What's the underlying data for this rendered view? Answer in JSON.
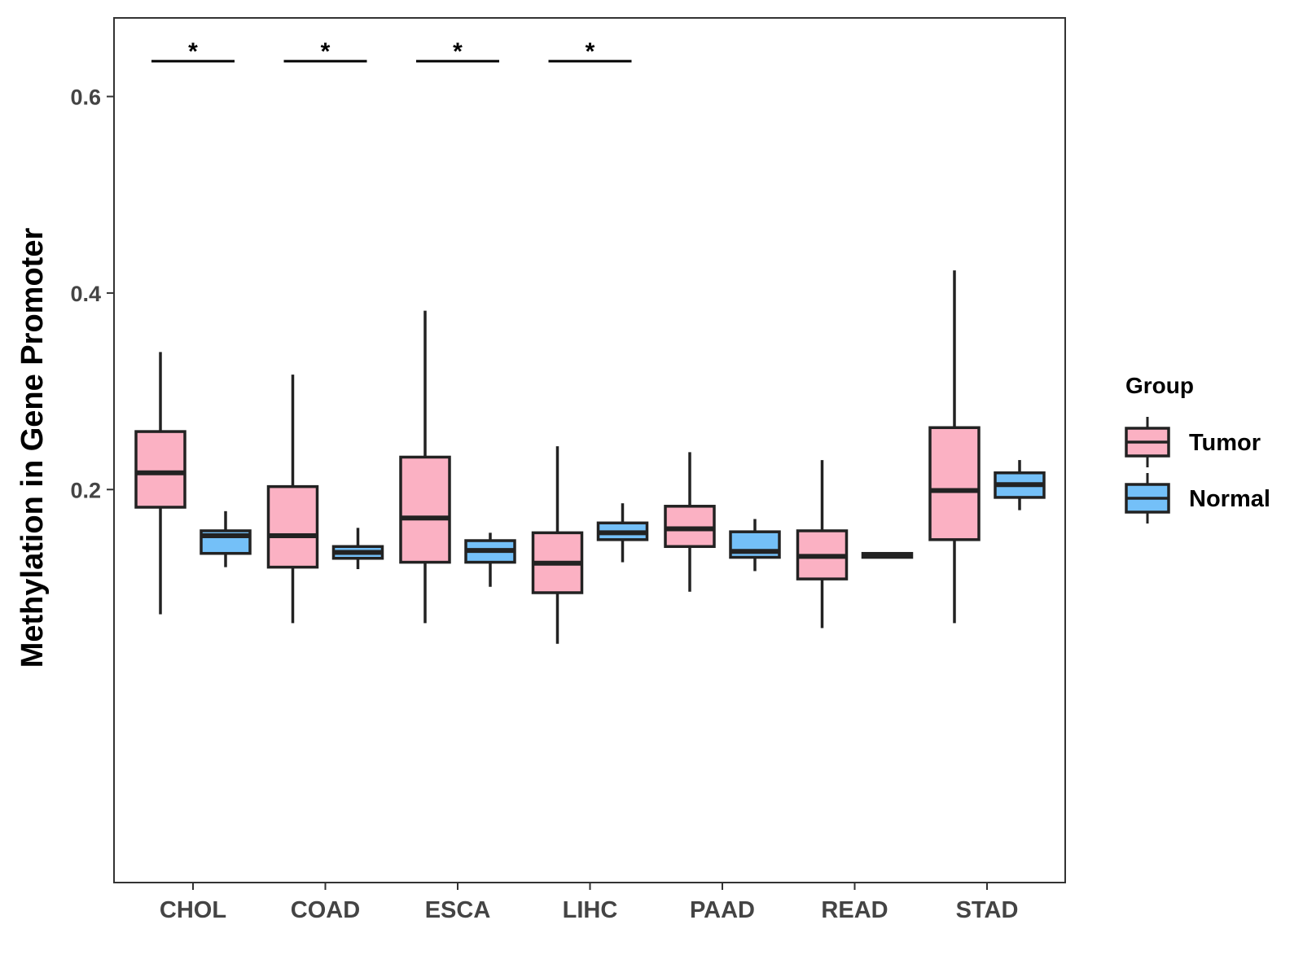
{
  "chart_data": {
    "type": "boxplot",
    "title": "",
    "xlabel": "",
    "ylabel": "Methylation in Gene Promoter",
    "ylim": [
      -0.2,
      0.68
    ],
    "yticks": [
      0.2,
      0.4,
      0.6
    ],
    "ytick_labels": [
      "0.2",
      "0.4",
      "0.6"
    ],
    "categories": [
      "CHOL",
      "COAD",
      "ESCA",
      "LIHC",
      "PAAD",
      "READ",
      "STAD"
    ],
    "legend": {
      "title": "Group",
      "position": "right",
      "entries": [
        {
          "name": "Tumor",
          "color": "#FBB1C3"
        },
        {
          "name": "Normal",
          "color": "#74C0F8"
        }
      ]
    },
    "series": [
      {
        "name": "Tumor",
        "color": "#FBB1C3",
        "boxes": [
          {
            "category": "CHOL",
            "whisker_low": 0.073,
            "q1": 0.182,
            "median": 0.217,
            "q3": 0.259,
            "whisker_high": 0.34
          },
          {
            "category": "COAD",
            "whisker_low": 0.064,
            "q1": 0.121,
            "median": 0.153,
            "q3": 0.203,
            "whisker_high": 0.317
          },
          {
            "category": "ESCA",
            "whisker_low": 0.064,
            "q1": 0.126,
            "median": 0.171,
            "q3": 0.233,
            "whisker_high": 0.382
          },
          {
            "category": "LIHC",
            "whisker_low": 0.043,
            "q1": 0.095,
            "median": 0.125,
            "q3": 0.156,
            "whisker_high": 0.244
          },
          {
            "category": "PAAD",
            "whisker_low": 0.096,
            "q1": 0.142,
            "median": 0.16,
            "q3": 0.183,
            "whisker_high": 0.238
          },
          {
            "category": "READ",
            "whisker_low": 0.059,
            "q1": 0.109,
            "median": 0.132,
            "q3": 0.158,
            "whisker_high": 0.23
          },
          {
            "category": "STAD",
            "whisker_low": 0.064,
            "q1": 0.149,
            "median": 0.199,
            "q3": 0.263,
            "whisker_high": 0.423
          }
        ]
      },
      {
        "name": "Normal",
        "color": "#74C0F8",
        "boxes": [
          {
            "category": "CHOL",
            "whisker_low": 0.121,
            "q1": 0.135,
            "median": 0.153,
            "q3": 0.158,
            "whisker_high": 0.178
          },
          {
            "category": "COAD",
            "whisker_low": 0.119,
            "q1": 0.13,
            "median": 0.136,
            "q3": 0.142,
            "whisker_high": 0.161
          },
          {
            "category": "ESCA",
            "whisker_low": 0.101,
            "q1": 0.126,
            "median": 0.138,
            "q3": 0.148,
            "whisker_high": 0.156
          },
          {
            "category": "LIHC",
            "whisker_low": 0.126,
            "q1": 0.149,
            "median": 0.156,
            "q3": 0.166,
            "whisker_high": 0.186
          },
          {
            "category": "PAAD",
            "whisker_low": 0.117,
            "q1": 0.131,
            "median": 0.137,
            "q3": 0.157,
            "whisker_high": 0.17
          },
          {
            "category": "READ",
            "whisker_low": 0.13,
            "q1": 0.131,
            "median": 0.133,
            "q3": 0.135,
            "whisker_high": 0.136
          },
          {
            "category": "STAD",
            "whisker_low": 0.179,
            "q1": 0.192,
            "median": 0.205,
            "q3": 0.217,
            "whisker_high": 0.23
          }
        ]
      }
    ],
    "annotations": [
      {
        "category": "CHOL",
        "text": "*",
        "y": 0.636
      },
      {
        "category": "COAD",
        "text": "*",
        "y": 0.636
      },
      {
        "category": "ESCA",
        "text": "*",
        "y": 0.636
      },
      {
        "category": "LIHC",
        "text": "*",
        "y": 0.636
      }
    ]
  }
}
